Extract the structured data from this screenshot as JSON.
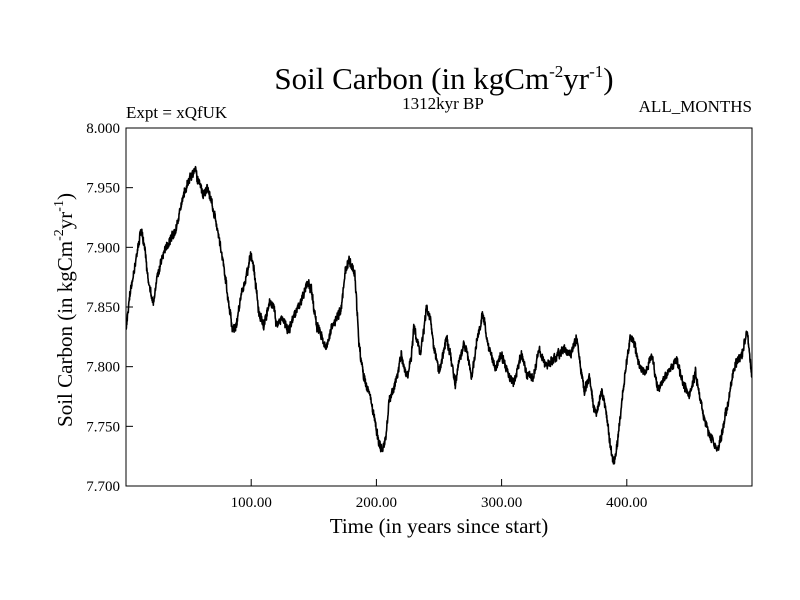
{
  "chart_data": {
    "type": "line",
    "title": {
      "base": "Soil Carbon (in kgCm",
      "sup1": "-2",
      "mid": "yr",
      "sup2": "-1",
      "end": ")"
    },
    "subtitle_left": "Expt = xQfUK",
    "subtitle_center": "1312kyr BP",
    "subtitle_right": "ALL_MONTHS",
    "xlabel": "Time (in years since start)",
    "ylabel": {
      "base": "Soil Carbon (in kgCm",
      "sup1": "-2",
      "mid": "yr",
      "sup2": "-1",
      "end": ")"
    },
    "xlim": [
      0,
      500
    ],
    "ylim": [
      7.7,
      8.0
    ],
    "x_ticks": [
      {
        "value": 100,
        "label": "100.00"
      },
      {
        "value": 200,
        "label": "200.00"
      },
      {
        "value": 300,
        "label": "300.00"
      },
      {
        "value": 400,
        "label": "400.00"
      }
    ],
    "y_ticks": [
      {
        "value": 7.7,
        "label": "7.700"
      },
      {
        "value": 7.75,
        "label": "7.750"
      },
      {
        "value": 7.8,
        "label": "7.800"
      },
      {
        "value": 7.85,
        "label": "7.850"
      },
      {
        "value": 7.9,
        "label": "7.900"
      },
      {
        "value": 7.95,
        "label": "7.950"
      },
      {
        "value": 8.0,
        "label": "8.000"
      }
    ],
    "grid": false,
    "series": [
      {
        "name": "Soil Carbon",
        "color": "#000000",
        "noise_amplitude": 0.006,
        "x": [
          0,
          3,
          8,
          12,
          15,
          18,
          22,
          25,
          30,
          35,
          40,
          45,
          50,
          55,
          58,
          62,
          65,
          70,
          75,
          80,
          85,
          88,
          92,
          96,
          100,
          103,
          106,
          110,
          115,
          118,
          120,
          125,
          130,
          135,
          140,
          145,
          148,
          152,
          155,
          160,
          165,
          168,
          172,
          175,
          178,
          180,
          183,
          186,
          190,
          195,
          198,
          202,
          205,
          208,
          210,
          215,
          220,
          222,
          225,
          228,
          230,
          233,
          235,
          238,
          240,
          243,
          246,
          250,
          253,
          256,
          260,
          263,
          266,
          270,
          273,
          276,
          280,
          285,
          290,
          295,
          300,
          305,
          310,
          313,
          316,
          320,
          325,
          330,
          335,
          340,
          345,
          350,
          355,
          360,
          363,
          366,
          370,
          373,
          376,
          380,
          383,
          386,
          388,
          390,
          393,
          396,
          400,
          403,
          406,
          410,
          415,
          420,
          425,
          430,
          435,
          440,
          445,
          450,
          455,
          460,
          465,
          468,
          470,
          473,
          476,
          480,
          485,
          488,
          492,
          496,
          500
        ],
        "y": [
          7.83,
          7.86,
          7.89,
          7.915,
          7.9,
          7.87,
          7.855,
          7.875,
          7.895,
          7.905,
          7.915,
          7.94,
          7.955,
          7.965,
          7.955,
          7.945,
          7.95,
          7.93,
          7.905,
          7.87,
          7.83,
          7.835,
          7.86,
          7.875,
          7.895,
          7.875,
          7.845,
          7.835,
          7.855,
          7.85,
          7.835,
          7.84,
          7.83,
          7.845,
          7.855,
          7.87,
          7.865,
          7.835,
          7.83,
          7.815,
          7.835,
          7.84,
          7.85,
          7.88,
          7.89,
          7.885,
          7.875,
          7.82,
          7.79,
          7.775,
          7.76,
          7.735,
          7.73,
          7.745,
          7.77,
          7.785,
          7.81,
          7.8,
          7.79,
          7.81,
          7.835,
          7.82,
          7.81,
          7.83,
          7.85,
          7.84,
          7.815,
          7.795,
          7.81,
          7.825,
          7.805,
          7.785,
          7.805,
          7.82,
          7.81,
          7.79,
          7.82,
          7.845,
          7.815,
          7.8,
          7.81,
          7.795,
          7.785,
          7.8,
          7.81,
          7.795,
          7.79,
          7.815,
          7.8,
          7.805,
          7.81,
          7.815,
          7.81,
          7.825,
          7.8,
          7.78,
          7.79,
          7.77,
          7.76,
          7.78,
          7.765,
          7.74,
          7.725,
          7.72,
          7.74,
          7.77,
          7.805,
          7.825,
          7.82,
          7.8,
          7.795,
          7.81,
          7.78,
          7.79,
          7.8,
          7.805,
          7.785,
          7.775,
          7.795,
          7.765,
          7.745,
          7.74,
          7.735,
          7.73,
          7.745,
          7.765,
          7.795,
          7.805,
          7.81,
          7.83,
          7.79
        ]
      }
    ]
  }
}
